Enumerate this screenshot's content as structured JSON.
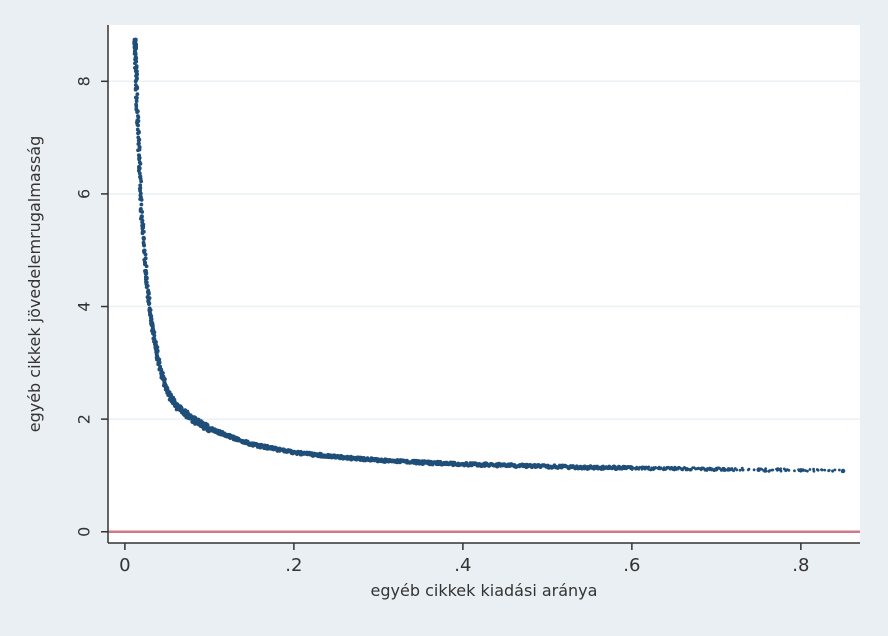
{
  "chart_data": {
    "type": "scatter",
    "title": "",
    "xlabel": "egyéb cikkek kiadási aránya",
    "ylabel": "egyéb cikkek jövedelemrugalmasság",
    "xlim": [
      -0.02,
      0.87
    ],
    "ylim": [
      -0.2,
      9.0
    ],
    "x_ticks": [
      0,
      0.2,
      0.4,
      0.6,
      0.8
    ],
    "x_tick_labels": [
      "0",
      ".2",
      ".4",
      ".6",
      ".8"
    ],
    "y_ticks": [
      0,
      2,
      4,
      6,
      8
    ],
    "y_tick_labels": [
      "0",
      "2",
      "4",
      "6",
      "8"
    ],
    "grid": "horizontal",
    "reference_line": {
      "y": 0,
      "color": "#d07a88"
    },
    "series": [
      {
        "color": "#1f4e79",
        "x": [
          0.012,
          0.015,
          0.02,
          0.025,
          0.03,
          0.04,
          0.05,
          0.06,
          0.08,
          0.1,
          0.15,
          0.2,
          0.25,
          0.3,
          0.35,
          0.4,
          0.45,
          0.5,
          0.55,
          0.6,
          0.65,
          0.7,
          0.75,
          0.8,
          0.85
        ],
        "y": [
          8.7,
          7.3,
          5.6,
          4.6,
          3.85,
          3.0,
          2.5,
          2.25,
          2.0,
          1.83,
          1.55,
          1.41,
          1.33,
          1.27,
          1.23,
          1.2,
          1.18,
          1.16,
          1.14,
          1.13,
          1.12,
          1.11,
          1.1,
          1.09,
          1.08
        ]
      }
    ]
  },
  "colors": {
    "outer_background": "#e9eff3",
    "plot_background": "#ffffff",
    "gridline": "#eaf0f4",
    "axis": "#333333"
  }
}
